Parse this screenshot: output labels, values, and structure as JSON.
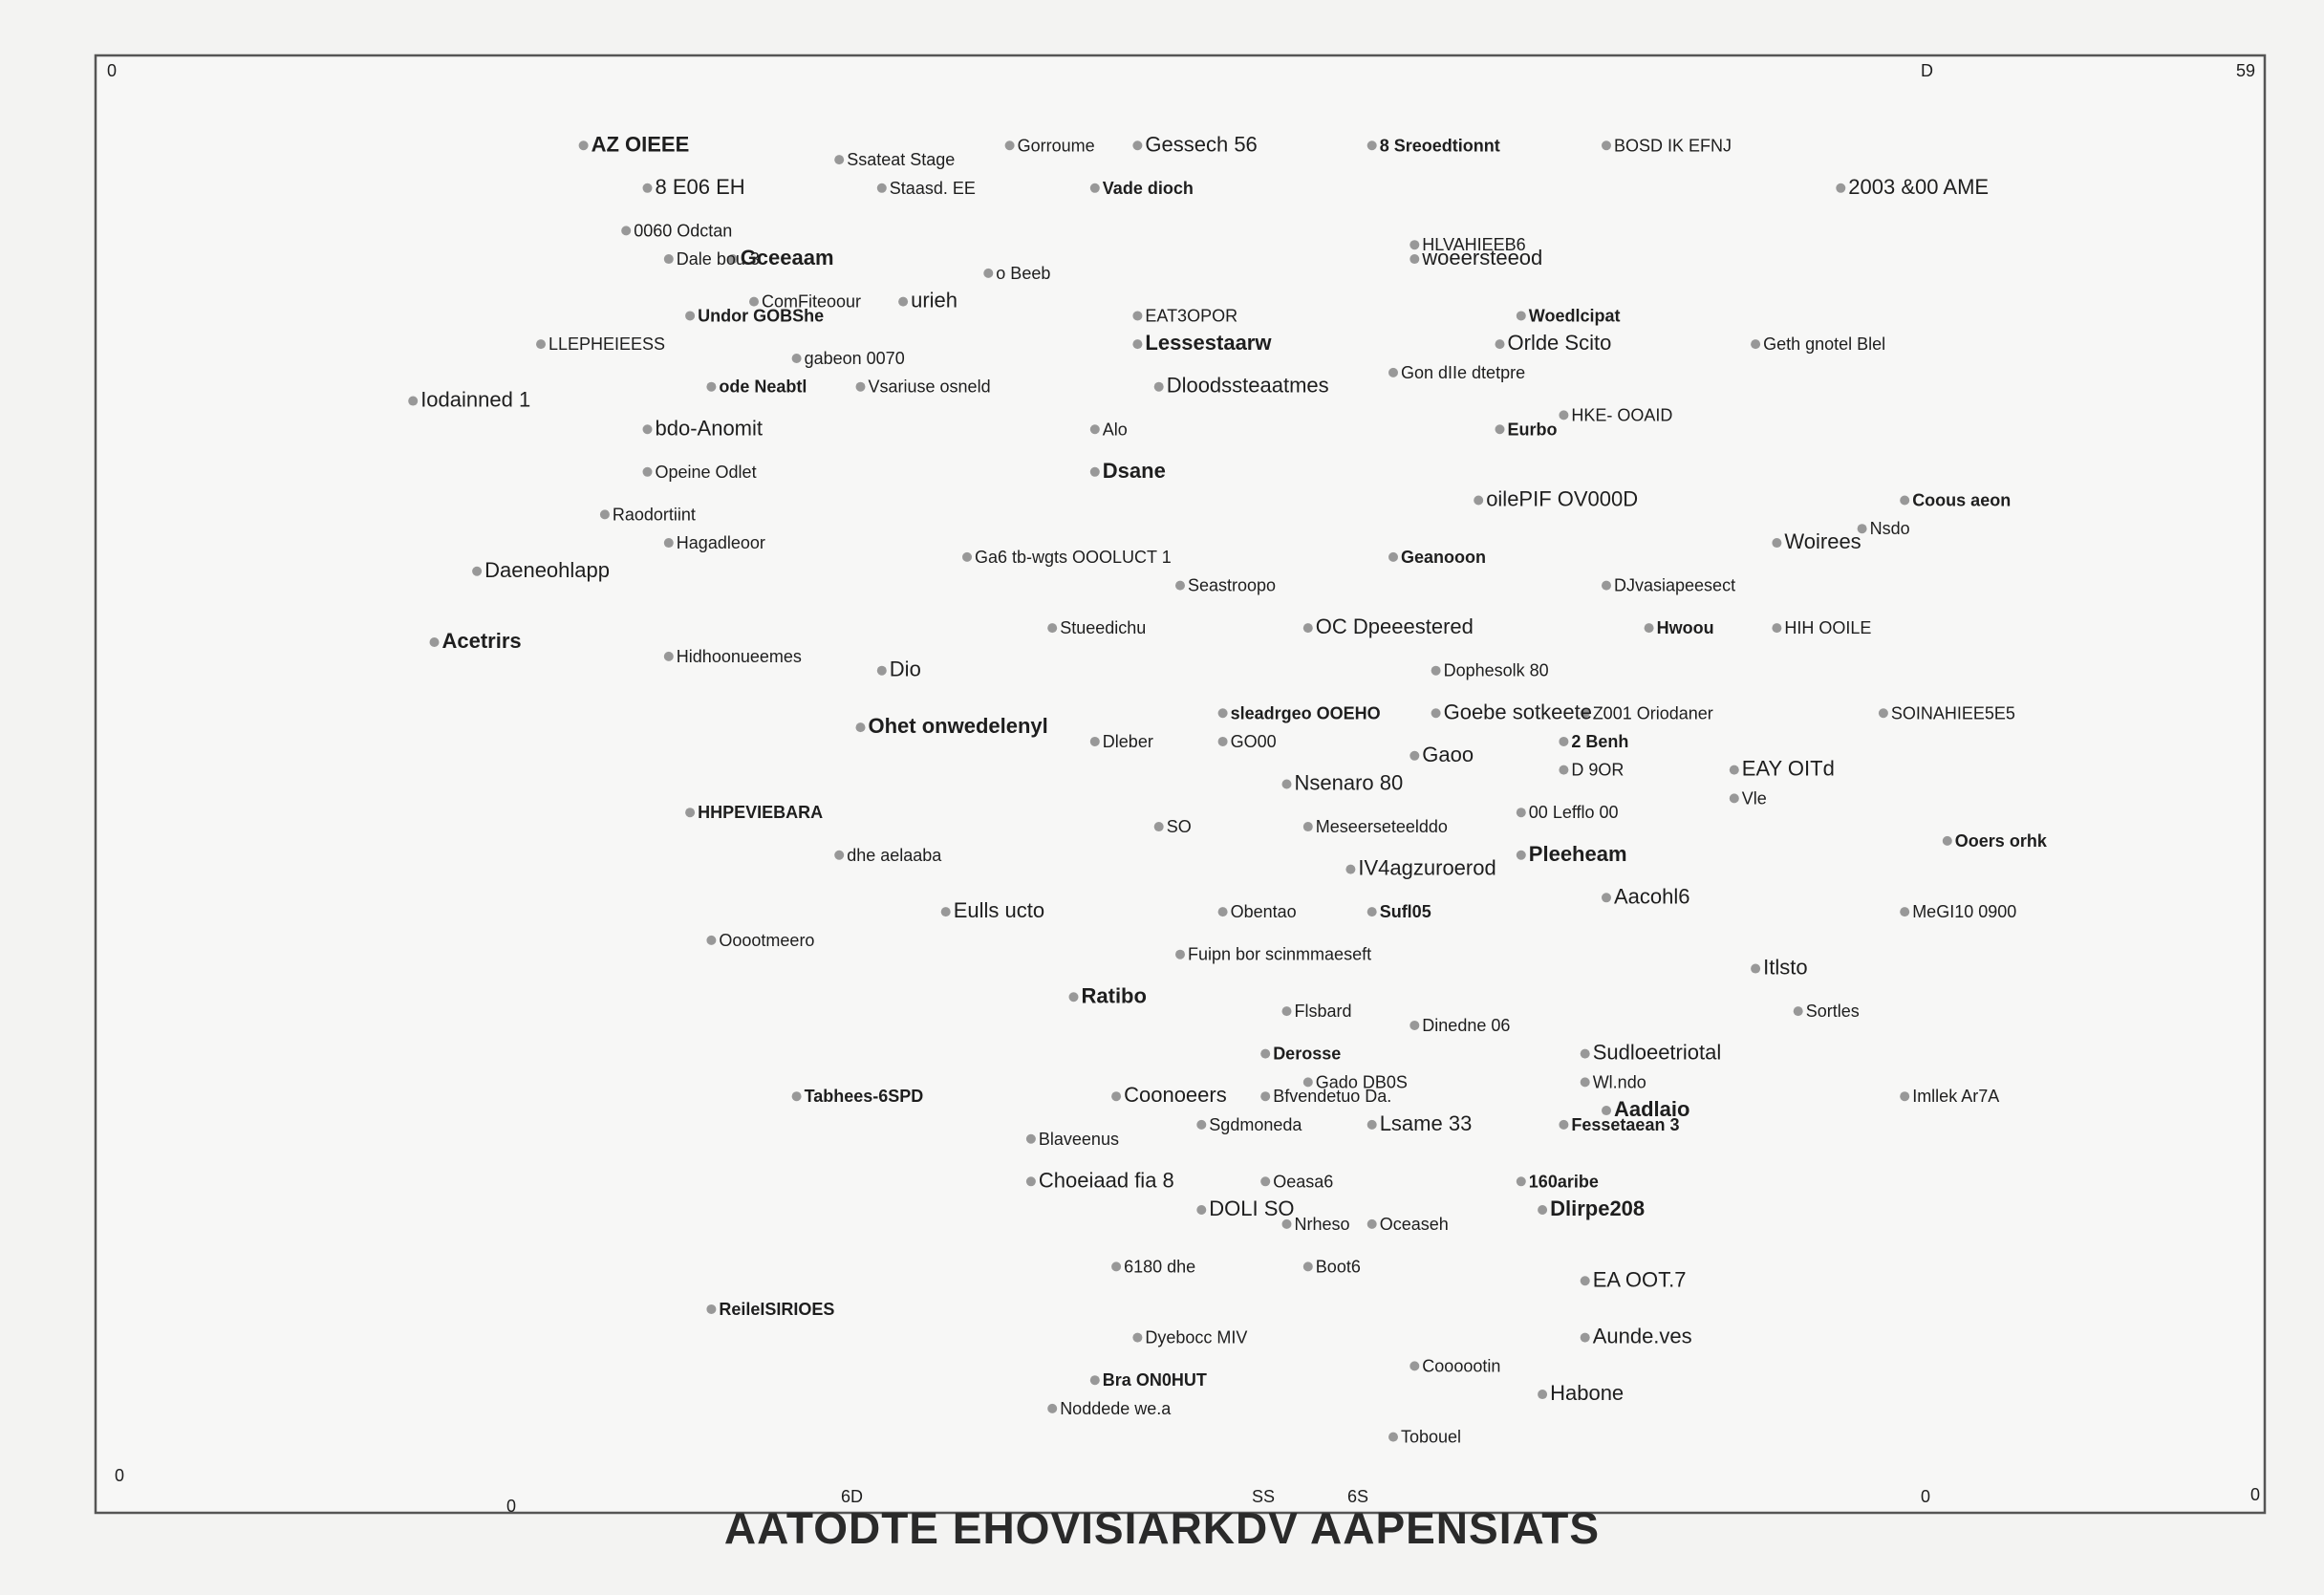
{
  "chart_data": {
    "type": "scatter",
    "title": "",
    "caption": "AATODTE EHOVISIARKDV AAPENSIATS",
    "xlim": [
      0,
      100
    ],
    "ylim": [
      0,
      100
    ],
    "grid": false,
    "corner_labels": [
      "0",
      "D",
      "59",
      "0",
      "0",
      "0"
    ],
    "bottom_ticks": [
      "6D",
      "SS",
      "6S",
      "0"
    ],
    "points": [
      {
        "x": 22,
        "y": 95,
        "label": "AZ OIEEE"
      },
      {
        "x": 34,
        "y": 94,
        "label": "Ssateat Stage"
      },
      {
        "x": 42,
        "y": 95,
        "label": "Gorroume"
      },
      {
        "x": 48,
        "y": 95,
        "label": "Gessech 56"
      },
      {
        "x": 59,
        "y": 95,
        "label": "8 Sreoedtionnt"
      },
      {
        "x": 70,
        "y": 95,
        "label": "BOSD IK EFNJ"
      },
      {
        "x": 25,
        "y": 92,
        "label": "8 E06 EH"
      },
      {
        "x": 36,
        "y": 92,
        "label": "Staasd. EE"
      },
      {
        "x": 46,
        "y": 92,
        "label": "Vade dioch"
      },
      {
        "x": 81,
        "y": 92,
        "label": "2003 &00 AME"
      },
      {
        "x": 24,
        "y": 89,
        "label": "0060 Odctan"
      },
      {
        "x": 26,
        "y": 87,
        "label": "Dale bou 3"
      },
      {
        "x": 29,
        "y": 87,
        "label": "Gceeaam"
      },
      {
        "x": 41,
        "y": 86,
        "label": "o Beeb"
      },
      {
        "x": 61,
        "y": 88,
        "label": "HLVAHIEEB6"
      },
      {
        "x": 61,
        "y": 87,
        "label": "woeersteeod"
      },
      {
        "x": 27,
        "y": 83,
        "label": "Undor GOBShe"
      },
      {
        "x": 30,
        "y": 84,
        "label": "ComFiteoour"
      },
      {
        "x": 37,
        "y": 84,
        "label": "urieh"
      },
      {
        "x": 48,
        "y": 83,
        "label": "EAT3OPOR"
      },
      {
        "x": 66,
        "y": 83,
        "label": "Woedlcipat"
      },
      {
        "x": 65,
        "y": 81,
        "label": "Orlde Scito"
      },
      {
        "x": 20,
        "y": 81,
        "label": "LLEPHEIEESS"
      },
      {
        "x": 32,
        "y": 80,
        "label": "gabeon 0070"
      },
      {
        "x": 48,
        "y": 81,
        "label": "Lessestaarw"
      },
      {
        "x": 60,
        "y": 79,
        "label": "Gon dIIe dtetpre"
      },
      {
        "x": 77,
        "y": 81,
        "label": "Geth gnotel Blel"
      },
      {
        "x": 14,
        "y": 77,
        "label": "Iodainned 1"
      },
      {
        "x": 28,
        "y": 78,
        "label": "ode Neabtl"
      },
      {
        "x": 35,
        "y": 78,
        "label": "Vsariuse osneld"
      },
      {
        "x": 49,
        "y": 78,
        "label": "Dloodssteaatmes"
      },
      {
        "x": 68,
        "y": 76,
        "label": "HKE- OOAID"
      },
      {
        "x": 65,
        "y": 75,
        "label": "Eurbo"
      },
      {
        "x": 25,
        "y": 75,
        "label": "bdo-Anomit"
      },
      {
        "x": 46,
        "y": 75,
        "label": "Alo"
      },
      {
        "x": 25,
        "y": 72,
        "label": "Opeine Odlet"
      },
      {
        "x": 46,
        "y": 72,
        "label": "Dsane"
      },
      {
        "x": 23,
        "y": 69,
        "label": "Raodortiint"
      },
      {
        "x": 26,
        "y": 67,
        "label": "Hagadleoor"
      },
      {
        "x": 64,
        "y": 70,
        "label": "oilePIF OV000D"
      },
      {
        "x": 84,
        "y": 70,
        "label": "Coous aeon"
      },
      {
        "x": 82,
        "y": 68,
        "label": "Nsdo"
      },
      {
        "x": 17,
        "y": 65,
        "label": "Daeneohlapp"
      },
      {
        "x": 40,
        "y": 66,
        "label": "Ga6 tb-wgts OOOLUCT 1"
      },
      {
        "x": 60,
        "y": 66,
        "label": "Geanooon"
      },
      {
        "x": 78,
        "y": 67,
        "label": "Woirees"
      },
      {
        "x": 50,
        "y": 64,
        "label": "Seastroopo"
      },
      {
        "x": 70,
        "y": 64,
        "label": "DJvasiapeesect"
      },
      {
        "x": 15,
        "y": 60,
        "label": "Acetrirs"
      },
      {
        "x": 26,
        "y": 59,
        "label": "Hidhoonueemes"
      },
      {
        "x": 44,
        "y": 61,
        "label": "Stueedichu"
      },
      {
        "x": 56,
        "y": 61,
        "label": "OC Dpeeestered"
      },
      {
        "x": 72,
        "y": 61,
        "label": "Hwoou"
      },
      {
        "x": 78,
        "y": 61,
        "label": "HIH OOILE"
      },
      {
        "x": 36,
        "y": 58,
        "label": "Dio"
      },
      {
        "x": 62,
        "y": 58,
        "label": "Dophesolk 80"
      },
      {
        "x": 52,
        "y": 55,
        "label": "sleadrgeo OOEHO"
      },
      {
        "x": 62,
        "y": 55,
        "label": "Goebe sotkeete"
      },
      {
        "x": 69,
        "y": 55,
        "label": "Z001 Oriodaner"
      },
      {
        "x": 83,
        "y": 55,
        "label": "SOINAHIEE5E5"
      },
      {
        "x": 35,
        "y": 54,
        "label": "Ohet onwedelenyl"
      },
      {
        "x": 46,
        "y": 53,
        "label": "Dleber"
      },
      {
        "x": 52,
        "y": 53,
        "label": "GO00"
      },
      {
        "x": 61,
        "y": 52,
        "label": "Gaoo"
      },
      {
        "x": 68,
        "y": 53,
        "label": "2 Benh"
      },
      {
        "x": 68,
        "y": 51,
        "label": "D 9OR"
      },
      {
        "x": 76,
        "y": 51,
        "label": "EAY OITd"
      },
      {
        "x": 76,
        "y": 49,
        "label": "Vle"
      },
      {
        "x": 27,
        "y": 48,
        "label": "HHPEVIEBARA"
      },
      {
        "x": 55,
        "y": 50,
        "label": "Nsenaro 80"
      },
      {
        "x": 56,
        "y": 47,
        "label": "Meseerseteelddo"
      },
      {
        "x": 66,
        "y": 48,
        "label": "00 Lefflo 00"
      },
      {
        "x": 66,
        "y": 45,
        "label": "Pleeheam"
      },
      {
        "x": 34,
        "y": 45,
        "label": "dhe aelaaba"
      },
      {
        "x": 49,
        "y": 47,
        "label": "SO"
      },
      {
        "x": 58,
        "y": 44,
        "label": "IV4agzuroerod"
      },
      {
        "x": 86,
        "y": 46,
        "label": "Ooers orhk"
      },
      {
        "x": 28,
        "y": 39,
        "label": "Ooootmeero"
      },
      {
        "x": 39,
        "y": 41,
        "label": "Eulls ucto"
      },
      {
        "x": 52,
        "y": 41,
        "label": "Obentao"
      },
      {
        "x": 59,
        "y": 41,
        "label": "Sufl05"
      },
      {
        "x": 70,
        "y": 42,
        "label": "Aacohl6"
      },
      {
        "x": 84,
        "y": 41,
        "label": "MeGI10 0900"
      },
      {
        "x": 50,
        "y": 38,
        "label": "Fuipn bor scinmmaeseft"
      },
      {
        "x": 45,
        "y": 35,
        "label": "Ratibo"
      },
      {
        "x": 55,
        "y": 34,
        "label": "Flsbard"
      },
      {
        "x": 61,
        "y": 33,
        "label": "Dinedne 06"
      },
      {
        "x": 77,
        "y": 37,
        "label": "Itlsto"
      },
      {
        "x": 54,
        "y": 31,
        "label": "Derosse"
      },
      {
        "x": 56,
        "y": 29,
        "label": "Gado DB0S"
      },
      {
        "x": 69,
        "y": 31,
        "label": "Sudloeetriotal"
      },
      {
        "x": 79,
        "y": 34,
        "label": "Sortles"
      },
      {
        "x": 32,
        "y": 28,
        "label": "Tabhees-6SPD"
      },
      {
        "x": 47,
        "y": 28,
        "label": "Coonoeers"
      },
      {
        "x": 54,
        "y": 28,
        "label": "Bfvendetuo Da."
      },
      {
        "x": 69,
        "y": 29,
        "label": "Wl.ndo"
      },
      {
        "x": 70,
        "y": 27,
        "label": "Aadlaio"
      },
      {
        "x": 43,
        "y": 25,
        "label": "Blaveenus"
      },
      {
        "x": 51,
        "y": 26,
        "label": "Sgdmoneda"
      },
      {
        "x": 59,
        "y": 26,
        "label": "Lsame 33"
      },
      {
        "x": 68,
        "y": 26,
        "label": "Fessetaean 3"
      },
      {
        "x": 84,
        "y": 28,
        "label": "Imllek Ar7A"
      },
      {
        "x": 43,
        "y": 22,
        "label": "Choeiaad fia 8"
      },
      {
        "x": 54,
        "y": 22,
        "label": "Oeasa6"
      },
      {
        "x": 66,
        "y": 22,
        "label": "160aribe"
      },
      {
        "x": 51,
        "y": 20,
        "label": "DOLI SO"
      },
      {
        "x": 55,
        "y": 19,
        "label": "Nrheso"
      },
      {
        "x": 59,
        "y": 19,
        "label": "Oceaseh"
      },
      {
        "x": 67,
        "y": 20,
        "label": "Dlirpe208"
      },
      {
        "x": 47,
        "y": 16,
        "label": "6180 dhe"
      },
      {
        "x": 56,
        "y": 16,
        "label": "Boot6"
      },
      {
        "x": 69,
        "y": 15,
        "label": "EA OOT.7"
      },
      {
        "x": 28,
        "y": 13,
        "label": "ReileISIRIOES"
      },
      {
        "x": 48,
        "y": 11,
        "label": "Dyebocc MIV"
      },
      {
        "x": 69,
        "y": 11,
        "label": "Aunde.ves"
      },
      {
        "x": 61,
        "y": 9,
        "label": "Coooootin"
      },
      {
        "x": 46,
        "y": 8,
        "label": "Bra ON0HUT"
      },
      {
        "x": 67,
        "y": 7,
        "label": "Habone"
      },
      {
        "x": 44,
        "y": 6,
        "label": "Noddede we.a"
      },
      {
        "x": 60,
        "y": 4,
        "label": "Tobouel"
      }
    ]
  }
}
